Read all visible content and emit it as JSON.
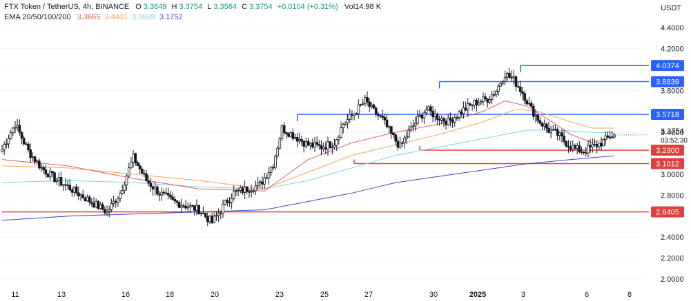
{
  "header": {
    "symbol": "FTX Token / TetherUS, 4h, BINANCE",
    "open_label": "O",
    "open": "3.3649",
    "high_label": "H",
    "high": "3.3754",
    "low_label": "L",
    "low": "3.3564",
    "close_label": "C",
    "close": "3.3754",
    "change": "+0.0104 (+0.31%)",
    "volume": "Vol14.98 K",
    "ema_label": "EMA 20/50/100/200",
    "ema20": "3.3665",
    "ema50": "3.4401",
    "ema100": "3.3939",
    "ema200": "3.1752"
  },
  "currency": "USDT",
  "colors": {
    "up": "#089981",
    "down": "#131722",
    "candle_up_fill": "#ffffff",
    "ema20": "#e65c5c",
    "ema50": "#f2a65a",
    "ema100": "#7fd3e0",
    "ema200": "#4a3ec7",
    "resistance": "#2962ff",
    "support": "#e0403f"
  },
  "chart_data": {
    "type": "candlestick",
    "timeframe": "4h",
    "y_axis": {
      "min": 2.0,
      "max": 4.4,
      "ticks": [
        "4.4000",
        "4.2000",
        "4.0000",
        "3.8000",
        "3.6000",
        "3.4000",
        "3.2000",
        "3.0000",
        "2.8000",
        "2.6000",
        "2.4000",
        "2.2000",
        "2.0000"
      ]
    },
    "x_axis": {
      "labels": [
        "11",
        "13",
        "16",
        "18",
        "20",
        "23",
        "25",
        "27",
        "30",
        "2025",
        "3",
        "6",
        "8"
      ]
    },
    "current_price": "3.3754",
    "countdown": "03:52:30",
    "levels": [
      {
        "price": "4.0374",
        "kind": "resistance"
      },
      {
        "price": "3.8839",
        "kind": "resistance"
      },
      {
        "price": "3.5718",
        "kind": "resistance"
      },
      {
        "price": "3.2300",
        "kind": "support"
      },
      {
        "price": "3.1012",
        "kind": "support"
      },
      {
        "price": "2.6405",
        "kind": "support"
      }
    ],
    "price_path": [
      [
        0,
        3.24
      ],
      [
        6,
        3.48
      ],
      [
        12,
        3.22
      ],
      [
        18,
        3.06
      ],
      [
        24,
        2.96
      ],
      [
        30,
        2.88
      ],
      [
        36,
        2.8
      ],
      [
        42,
        2.72
      ],
      [
        48,
        2.64
      ],
      [
        54,
        2.82
      ],
      [
        60,
        3.16
      ],
      [
        66,
        2.94
      ],
      [
        72,
        2.82
      ],
      [
        78,
        2.74
      ],
      [
        84,
        2.7
      ],
      [
        90,
        2.66
      ],
      [
        96,
        2.54
      ],
      [
        102,
        2.72
      ],
      [
        106,
        2.82
      ],
      [
        112,
        2.86
      ],
      [
        118,
        2.9
      ],
      [
        124,
        3.1
      ],
      [
        128,
        3.44
      ],
      [
        134,
        3.36
      ],
      [
        140,
        3.28
      ],
      [
        146,
        3.26
      ],
      [
        152,
        3.3
      ],
      [
        156,
        3.48
      ],
      [
        160,
        3.56
      ],
      [
        166,
        3.7
      ],
      [
        170,
        3.6
      ],
      [
        174,
        3.52
      ],
      [
        178,
        3.38
      ],
      [
        182,
        3.26
      ],
      [
        186,
        3.4
      ],
      [
        190,
        3.52
      ],
      [
        194,
        3.62
      ],
      [
        198,
        3.56
      ],
      [
        204,
        3.5
      ],
      [
        210,
        3.6
      ],
      [
        216,
        3.68
      ],
      [
        222,
        3.72
      ],
      [
        226,
        3.8
      ],
      [
        230,
        3.96
      ],
      [
        234,
        3.9
      ],
      [
        238,
        3.78
      ],
      [
        242,
        3.62
      ],
      [
        246,
        3.5
      ],
      [
        250,
        3.42
      ],
      [
        254,
        3.38
      ],
      [
        258,
        3.3
      ],
      [
        262,
        3.24
      ],
      [
        266,
        3.22
      ],
      [
        270,
        3.26
      ],
      [
        274,
        3.3
      ],
      [
        278,
        3.36
      ],
      [
        280,
        3.3754
      ]
    ],
    "ema_paths": {
      "ema20": [
        [
          0,
          3.14
        ],
        [
          30,
          3.08
        ],
        [
          60,
          2.96
        ],
        [
          90,
          2.86
        ],
        [
          120,
          2.84
        ],
        [
          140,
          3.14
        ],
        [
          160,
          3.3
        ],
        [
          180,
          3.4
        ],
        [
          200,
          3.48
        ],
        [
          220,
          3.6
        ],
        [
          230,
          3.7
        ],
        [
          240,
          3.65
        ],
        [
          250,
          3.52
        ],
        [
          260,
          3.38
        ],
        [
          270,
          3.3
        ],
        [
          280,
          3.3665
        ]
      ],
      "ema50": [
        [
          0,
          3.08
        ],
        [
          30,
          3.06
        ],
        [
          60,
          3.0
        ],
        [
          90,
          2.94
        ],
        [
          120,
          2.86
        ],
        [
          140,
          3.02
        ],
        [
          160,
          3.18
        ],
        [
          180,
          3.28
        ],
        [
          200,
          3.38
        ],
        [
          220,
          3.5
        ],
        [
          235,
          3.62
        ],
        [
          245,
          3.6
        ],
        [
          260,
          3.5
        ],
        [
          270,
          3.44
        ],
        [
          280,
          3.4401
        ]
      ],
      "ema100": [
        [
          0,
          2.92
        ],
        [
          30,
          2.94
        ],
        [
          60,
          2.92
        ],
        [
          90,
          2.88
        ],
        [
          120,
          2.86
        ],
        [
          140,
          2.94
        ],
        [
          160,
          3.06
        ],
        [
          180,
          3.18
        ],
        [
          200,
          3.26
        ],
        [
          220,
          3.34
        ],
        [
          240,
          3.42
        ],
        [
          255,
          3.42
        ],
        [
          270,
          3.4
        ],
        [
          280,
          3.3939
        ]
      ],
      "ema200": [
        [
          0,
          2.56
        ],
        [
          30,
          2.6
        ],
        [
          60,
          2.62
        ],
        [
          90,
          2.64
        ],
        [
          120,
          2.66
        ],
        [
          140,
          2.74
        ],
        [
          160,
          2.82
        ],
        [
          180,
          2.92
        ],
        [
          200,
          2.98
        ],
        [
          220,
          3.04
        ],
        [
          240,
          3.1
        ],
        [
          260,
          3.14
        ],
        [
          280,
          3.1752
        ]
      ]
    }
  }
}
